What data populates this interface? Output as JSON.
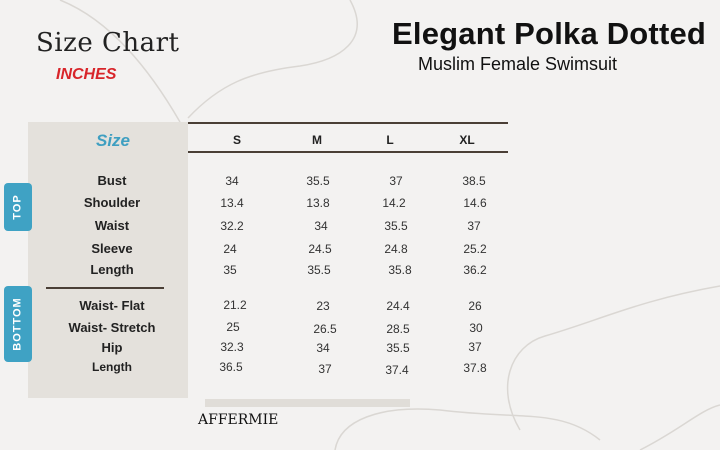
{
  "title": {
    "size_chart": "Size Chart",
    "units": "INCHES",
    "headline": "Elegant Polka Dotted",
    "subheadline": "Muslim Female Swimsuit"
  },
  "table": {
    "size_label": "Size",
    "sizes": [
      "S",
      "M",
      "L",
      "XL"
    ],
    "sections": [
      {
        "tab": "TOP",
        "rows": [
          {
            "label": "Bust",
            "values": [
              "34",
              "35.5",
              "37",
              "38.5"
            ]
          },
          {
            "label": "Shoulder",
            "values": [
              "13.4",
              "13.8",
              "14.2",
              "14.6"
            ]
          },
          {
            "label": "Waist",
            "values": [
              "32.2",
              "34",
              "35.5",
              "37"
            ]
          },
          {
            "label": "Sleeve",
            "values": [
              "24",
              "24.5",
              "24.8",
              "25.2"
            ]
          },
          {
            "label": "Length",
            "values": [
              "35",
              "35.5",
              "35.8",
              "36.2"
            ]
          }
        ]
      },
      {
        "tab": "BOTTOM",
        "rows": [
          {
            "label": "Waist- Flat",
            "values": [
              "21.2",
              "23",
              "24.4",
              "26"
            ]
          },
          {
            "label": "Waist- Stretch",
            "values": [
              "25",
              "26.5",
              "28.5",
              "30"
            ]
          },
          {
            "label": "Hip",
            "values": [
              "32.3",
              "34",
              "35.5",
              "37"
            ]
          },
          {
            "label": "Length",
            "values": [
              "36.5",
              "37",
              "37.4",
              "37.8"
            ]
          }
        ]
      }
    ]
  },
  "brand": "AFFERMIE",
  "colors": {
    "background": "#f3f2f1",
    "label_panel": "#e4e1dc",
    "tab": "#3fa2c4",
    "size_label": "#3f9fc1",
    "units": "#d8252a",
    "rule": "#4a3f36"
  }
}
